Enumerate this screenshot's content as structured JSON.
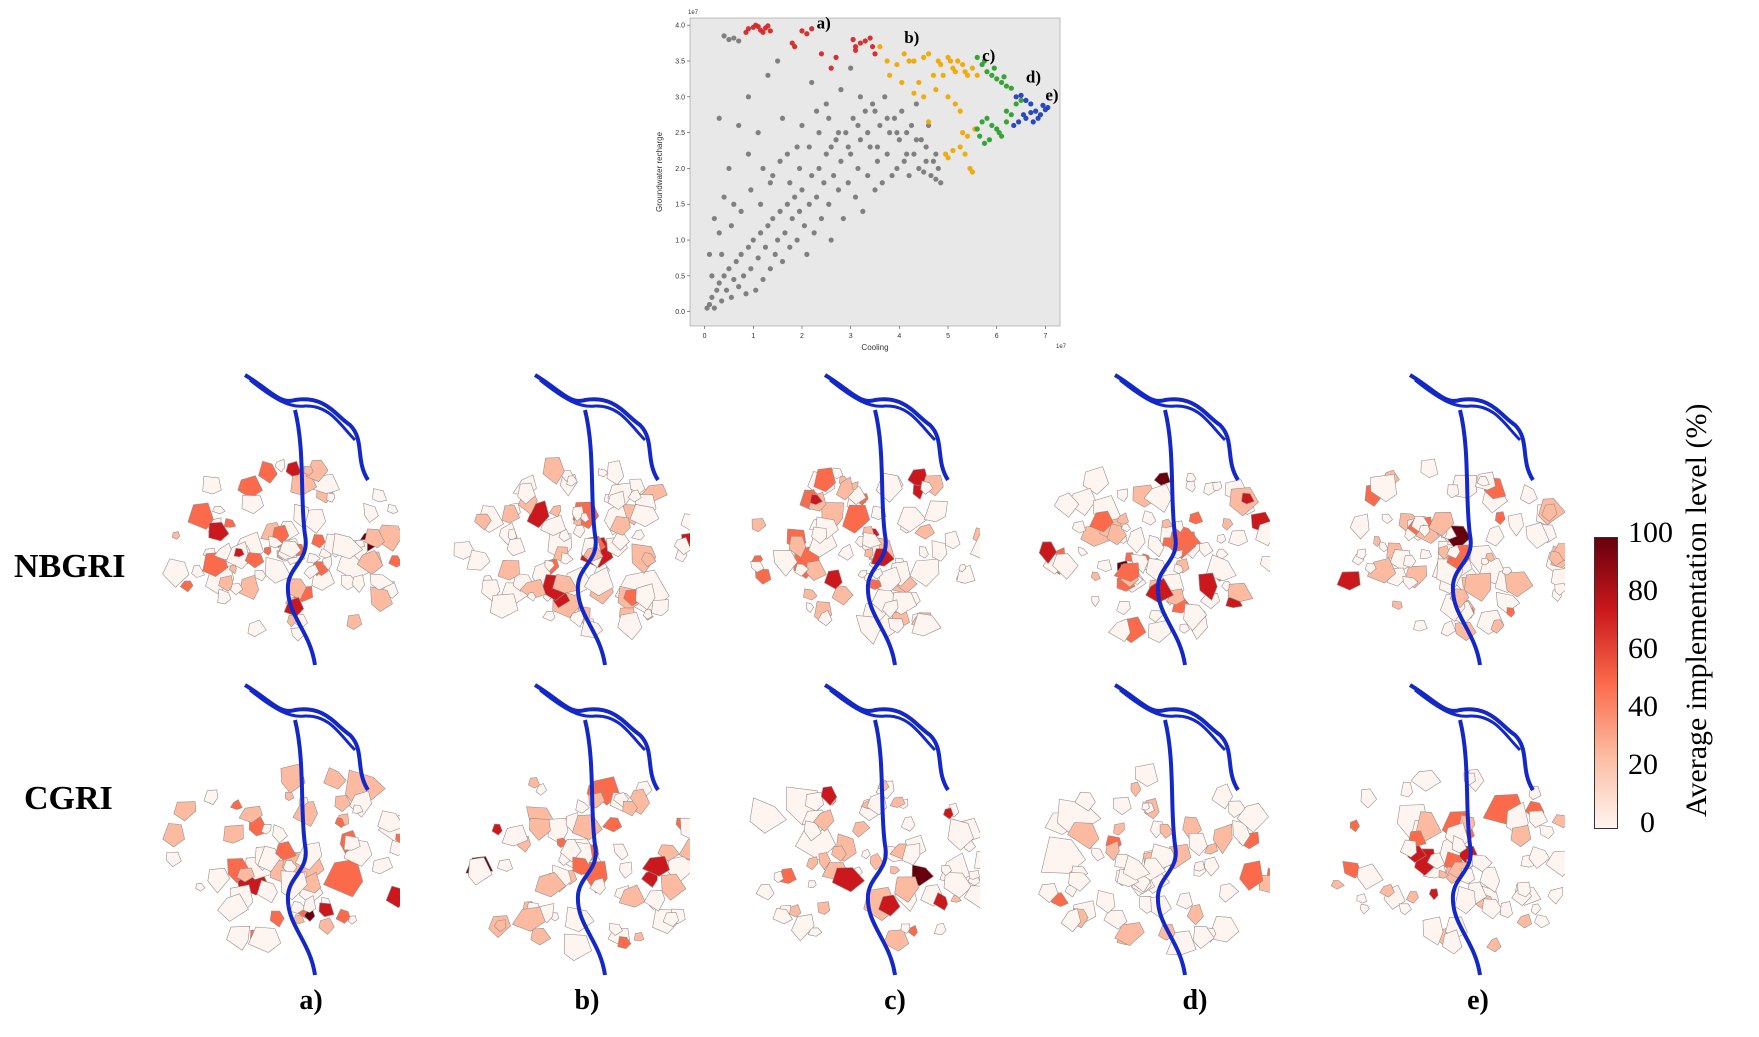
{
  "chart_data": [
    {
      "type": "scatter",
      "xlabel": "Cooling",
      "ylabel": "Groundwater recharge",
      "x_offset_label": "1e7",
      "y_offset_label": "1e7",
      "xlim": [
        -0.3,
        7.3
      ],
      "ylim": [
        -0.2,
        4.1
      ],
      "xticks": [
        "0",
        "1",
        "2",
        "3",
        "4",
        "5",
        "6",
        "7"
      ],
      "yticks": [
        "0.0",
        "0.5",
        "1.0",
        "1.5",
        "2.0",
        "2.5",
        "3.0",
        "3.5",
        "4.0"
      ],
      "grid": false,
      "background": "#e8e8e8",
      "annotations": [
        {
          "text": "a)",
          "x": 2.3,
          "y": 3.95
        },
        {
          "text": "b)",
          "x": 4.1,
          "y": 3.75
        },
        {
          "text": "c)",
          "x": 5.7,
          "y": 3.5
        },
        {
          "text": "d)",
          "x": 6.6,
          "y": 3.2
        },
        {
          "text": "e)",
          "x": 7.0,
          "y": 2.95
        }
      ],
      "series": [
        {
          "color": "#d62728",
          "points": [
            [
              0.9,
              3.95
            ],
            [
              1.0,
              3.97
            ],
            [
              1.1,
              3.98
            ],
            [
              1.15,
              3.93
            ],
            [
              1.2,
              3.9
            ],
            [
              1.25,
              3.96
            ],
            [
              1.3,
              3.99
            ],
            [
              1.35,
              3.92
            ],
            [
              0.85,
              3.9
            ],
            [
              1.05,
              4.0
            ],
            [
              1.8,
              3.75
            ],
            [
              1.85,
              3.7
            ],
            [
              2.0,
              3.92
            ],
            [
              2.1,
              3.88
            ],
            [
              2.2,
              3.95
            ],
            [
              2.4,
              3.6
            ],
            [
              2.6,
              3.4
            ],
            [
              2.7,
              3.55
            ],
            [
              3.05,
              3.8
            ],
            [
              3.1,
              3.7
            ],
            [
              3.2,
              3.75
            ],
            [
              3.3,
              3.78
            ],
            [
              3.45,
              3.7
            ],
            [
              3.5,
              3.6
            ],
            [
              3.1,
              3.65
            ],
            [
              3.4,
              3.82
            ]
          ]
        },
        {
          "color": "#f0a800",
          "points": [
            [
              3.6,
              3.7
            ],
            [
              3.75,
              3.5
            ],
            [
              3.8,
              3.3
            ],
            [
              3.95,
              3.45
            ],
            [
              4.05,
              3.2
            ],
            [
              4.1,
              3.6
            ],
            [
              4.2,
              3.5
            ],
            [
              4.3,
              3.05
            ],
            [
              4.4,
              3.2
            ],
            [
              4.5,
              3.55
            ],
            [
              4.6,
              3.6
            ],
            [
              4.7,
              3.3
            ],
            [
              4.75,
              3.1
            ],
            [
              4.8,
              3.5
            ],
            [
              4.85,
              3.45
            ],
            [
              4.9,
              3.3
            ],
            [
              5.0,
              3.55
            ],
            [
              5.05,
              3.5
            ],
            [
              5.1,
              3.4
            ],
            [
              5.15,
              3.35
            ],
            [
              5.2,
              3.5
            ],
            [
              5.3,
              3.45
            ],
            [
              5.35,
              3.35
            ],
            [
              5.4,
              3.3
            ],
            [
              5.5,
              3.4
            ],
            [
              5.6,
              3.3
            ],
            [
              5.0,
              3.0
            ],
            [
              5.15,
              2.9
            ],
            [
              5.25,
              2.8
            ],
            [
              4.95,
              2.2
            ],
            [
              5.0,
              2.15
            ],
            [
              5.1,
              2.25
            ],
            [
              5.25,
              2.3
            ],
            [
              5.35,
              2.2
            ],
            [
              5.45,
              2.0
            ],
            [
              5.5,
              1.95
            ],
            [
              5.3,
              2.5
            ],
            [
              5.4,
              2.45
            ],
            [
              5.55,
              2.55
            ],
            [
              4.6,
              2.65
            ],
            [
              4.5,
              3.0
            ],
            [
              4.3,
              3.5
            ]
          ]
        },
        {
          "color": "#2ca02c",
          "points": [
            [
              5.6,
              3.55
            ],
            [
              5.7,
              3.45
            ],
            [
              5.8,
              3.35
            ],
            [
              5.9,
              3.3
            ],
            [
              6.0,
              3.25
            ],
            [
              6.1,
              3.2
            ],
            [
              6.2,
              3.15
            ],
            [
              6.3,
              3.12
            ],
            [
              5.75,
              3.5
            ],
            [
              5.95,
              3.4
            ],
            [
              6.15,
              3.28
            ],
            [
              5.6,
              2.55
            ],
            [
              5.7,
              2.65
            ],
            [
              5.8,
              2.7
            ],
            [
              5.9,
              2.6
            ],
            [
              6.0,
              2.55
            ],
            [
              5.65,
              2.45
            ],
            [
              5.85,
              2.4
            ],
            [
              6.05,
              2.5
            ],
            [
              6.2,
              2.65
            ],
            [
              6.3,
              2.75
            ],
            [
              6.4,
              2.9
            ],
            [
              6.5,
              2.95
            ],
            [
              6.2,
              2.8
            ],
            [
              6.1,
              2.45
            ],
            [
              5.75,
              2.35
            ]
          ]
        },
        {
          "color": "#1f3fbf",
          "points": [
            [
              6.4,
              3.0
            ],
            [
              6.5,
              3.02
            ],
            [
              6.6,
              2.95
            ],
            [
              6.7,
              2.9
            ],
            [
              6.8,
              2.8
            ],
            [
              6.9,
              2.75
            ],
            [
              7.0,
              2.82
            ],
            [
              7.05,
              2.85
            ],
            [
              6.55,
              2.75
            ],
            [
              6.45,
              2.65
            ],
            [
              6.6,
              2.7
            ],
            [
              6.7,
              2.78
            ],
            [
              6.85,
              2.7
            ],
            [
              6.35,
              2.6
            ],
            [
              6.95,
              2.88
            ],
            [
              6.75,
              2.65
            ]
          ]
        },
        {
          "color": "#7a7a7a",
          "points": [
            [
              0.05,
              0.05
            ],
            [
              0.1,
              0.1
            ],
            [
              0.15,
              0.2
            ],
            [
              0.2,
              0.05
            ],
            [
              0.25,
              0.3
            ],
            [
              0.3,
              0.4
            ],
            [
              0.35,
              0.15
            ],
            [
              0.4,
              0.5
            ],
            [
              0.45,
              0.3
            ],
            [
              0.5,
              0.6
            ],
            [
              0.55,
              0.2
            ],
            [
              0.6,
              0.45
            ],
            [
              0.65,
              0.7
            ],
            [
              0.7,
              0.35
            ],
            [
              0.75,
              0.8
            ],
            [
              0.8,
              0.5
            ],
            [
              0.85,
              0.25
            ],
            [
              0.9,
              0.9
            ],
            [
              0.95,
              0.6
            ],
            [
              1.0,
              1.0
            ],
            [
              1.05,
              0.3
            ],
            [
              1.1,
              0.75
            ],
            [
              1.15,
              1.1
            ],
            [
              1.2,
              0.45
            ],
            [
              1.25,
              0.9
            ],
            [
              1.3,
              1.2
            ],
            [
              1.35,
              0.6
            ],
            [
              1.4,
              1.3
            ],
            [
              1.45,
              0.8
            ],
            [
              1.5,
              1.0
            ],
            [
              1.55,
              1.4
            ],
            [
              1.6,
              0.7
            ],
            [
              1.65,
              1.1
            ],
            [
              1.7,
              1.5
            ],
            [
              1.75,
              0.9
            ],
            [
              1.8,
              1.3
            ],
            [
              1.85,
              1.6
            ],
            [
              1.9,
              1.0
            ],
            [
              1.95,
              1.4
            ],
            [
              2.0,
              1.7
            ],
            [
              2.05,
              1.2
            ],
            [
              2.1,
              0.8
            ],
            [
              2.15,
              1.5
            ],
            [
              2.2,
              1.9
            ],
            [
              2.25,
              1.1
            ],
            [
              2.3,
              1.6
            ],
            [
              2.35,
              2.0
            ],
            [
              2.4,
              1.3
            ],
            [
              2.45,
              1.8
            ],
            [
              2.5,
              2.2
            ],
            [
              2.55,
              1.5
            ],
            [
              2.6,
              1.0
            ],
            [
              2.65,
              1.9
            ],
            [
              2.7,
              2.4
            ],
            [
              2.75,
              1.7
            ],
            [
              2.8,
              2.1
            ],
            [
              2.85,
              1.3
            ],
            [
              2.9,
              2.5
            ],
            [
              2.95,
              1.8
            ],
            [
              3.0,
              2.2
            ],
            [
              3.05,
              2.7
            ],
            [
              3.1,
              1.6
            ],
            [
              3.15,
              2.0
            ],
            [
              3.2,
              2.4
            ],
            [
              3.25,
              1.4
            ],
            [
              3.3,
              2.8
            ],
            [
              3.35,
              1.9
            ],
            [
              3.4,
              2.3
            ],
            [
              3.45,
              2.9
            ],
            [
              3.5,
              1.7
            ],
            [
              3.55,
              2.1
            ],
            [
              3.6,
              2.6
            ],
            [
              3.65,
              1.8
            ],
            [
              3.7,
              3.0
            ],
            [
              3.75,
              2.2
            ],
            [
              3.8,
              2.5
            ],
            [
              3.85,
              1.9
            ],
            [
              3.9,
              2.7
            ],
            [
              3.95,
              2.0
            ],
            [
              4.0,
              2.4
            ],
            [
              4.05,
              2.8
            ],
            [
              4.1,
              2.1
            ],
            [
              4.15,
              2.5
            ],
            [
              4.2,
              1.9
            ],
            [
              4.25,
              2.6
            ],
            [
              4.3,
              2.2
            ],
            [
              4.35,
              2.9
            ],
            [
              4.4,
              2.0
            ],
            [
              4.45,
              2.4
            ],
            [
              4.5,
              1.95
            ],
            [
              4.55,
              2.3
            ],
            [
              4.6,
              2.6
            ],
            [
              4.65,
              1.9
            ],
            [
              4.7,
              2.1
            ],
            [
              4.75,
              1.85
            ],
            [
              4.8,
              2.0
            ],
            [
              4.85,
              1.8
            ],
            [
              0.4,
              3.85
            ],
            [
              0.5,
              3.8
            ],
            [
              0.6,
              3.82
            ],
            [
              0.7,
              3.78
            ],
            [
              0.9,
              3.0
            ],
            [
              1.1,
              2.5
            ],
            [
              1.3,
              3.3
            ],
            [
              1.5,
              3.5
            ],
            [
              0.3,
              2.7
            ],
            [
              0.5,
              2.0
            ],
            [
              0.7,
              2.6
            ],
            [
              0.2,
              1.3
            ],
            [
              0.4,
              1.6
            ],
            [
              0.9,
              2.2
            ],
            [
              1.2,
              2.0
            ],
            [
              1.6,
              2.7
            ],
            [
              1.9,
              2.3
            ],
            [
              2.2,
              3.2
            ],
            [
              2.5,
              2.9
            ],
            [
              2.8,
              3.1
            ],
            [
              3.0,
              3.4
            ],
            [
              0.1,
              0.8
            ],
            [
              0.3,
              1.1
            ],
            [
              0.6,
              1.5
            ],
            [
              1.4,
              1.9
            ],
            [
              1.7,
              2.2
            ],
            [
              2.0,
              2.6
            ],
            [
              2.3,
              2.8
            ],
            [
              2.6,
              2.3
            ],
            [
              3.2,
              3.0
            ],
            [
              3.5,
              2.8
            ],
            [
              0.15,
              0.5
            ],
            [
              0.35,
              0.8
            ],
            [
              0.55,
              1.2
            ],
            [
              0.75,
              1.4
            ],
            [
              0.95,
              1.7
            ],
            [
              1.15,
              1.5
            ],
            [
              1.35,
              1.8
            ],
            [
              1.55,
              2.1
            ],
            [
              1.75,
              1.8
            ],
            [
              1.95,
              2.0
            ],
            [
              2.15,
              2.3
            ],
            [
              2.35,
              2.5
            ],
            [
              2.55,
              2.7
            ],
            [
              2.75,
              2.5
            ],
            [
              2.95,
              2.3
            ],
            [
              3.15,
              2.6
            ],
            [
              3.35,
              2.5
            ],
            [
              3.55,
              2.3
            ],
            [
              3.75,
              2.7
            ],
            [
              3.95,
              2.5
            ],
            [
              4.15,
              2.2
            ],
            [
              4.35,
              2.4
            ],
            [
              4.55,
              2.1
            ],
            [
              4.75,
              2.2
            ]
          ]
        }
      ]
    },
    {
      "type": "choropleth_grid",
      "row_labels": [
        "NBGRI",
        "CGRI"
      ],
      "column_labels": [
        "a)",
        "b)",
        "c)",
        "d)",
        "e)"
      ],
      "colorbar": {
        "label": "Average implementation level (%)",
        "ticks": [
          "100",
          "80",
          "60",
          "40",
          "20",
          "0"
        ],
        "range": [
          0,
          100
        ],
        "colors": [
          "#fff5f0",
          "#fcbba1",
          "#fb6a4a",
          "#cb181d",
          "#67000d"
        ]
      },
      "river_color": "#1428c8"
    }
  ]
}
